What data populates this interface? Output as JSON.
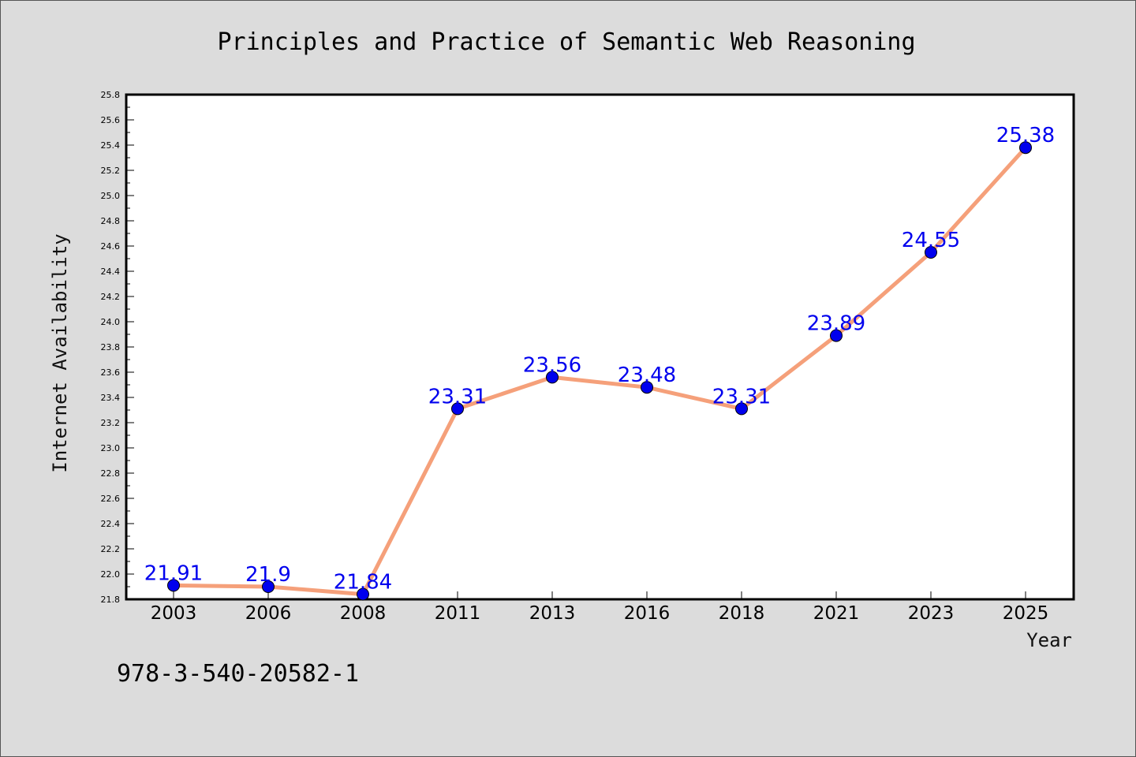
{
  "chart_data": {
    "type": "line",
    "title": "Principles and Practice of Semantic Web Reasoning",
    "xlabel": "Year",
    "ylabel": "Internet Availability",
    "categories": [
      "2003",
      "2006",
      "2008",
      "2011",
      "2013",
      "2016",
      "2018",
      "2021",
      "2023",
      "2025"
    ],
    "series": [
      {
        "values": [
          21.91,
          21.9,
          21.84,
          23.31,
          23.56,
          23.48,
          23.31,
          23.89,
          24.55,
          25.38
        ],
        "data_labels": [
          "21.91",
          "21.9",
          "21.84",
          "23.31",
          "23.56",
          "23.48",
          "23.31",
          "23.89",
          "24.55",
          "25.38"
        ],
        "line_color": "#f5a07a",
        "marker_color": "#0000ee"
      }
    ],
    "ylim": [
      21.8,
      25.8
    ],
    "yticks": [
      "21.8",
      "22.0",
      "22.2",
      "22.4",
      "22.6",
      "22.8",
      "23.0",
      "23.2",
      "23.4",
      "23.6",
      "23.8",
      "24.0",
      "24.2",
      "24.4",
      "24.6",
      "24.8",
      "25.0",
      "25.2",
      "25.4",
      "25.6",
      "25.8"
    ],
    "ytick_values": [
      21.8,
      22.0,
      22.2,
      22.4,
      22.6,
      22.8,
      23.0,
      23.2,
      23.4,
      23.6,
      23.8,
      24.0,
      24.2,
      24.4,
      24.6,
      24.8,
      25.0,
      25.2,
      25.4,
      25.6,
      25.8
    ],
    "grid": false,
    "legend": "none",
    "label_color": "#0000ee"
  },
  "footnote": "978-3-540-20582-1",
  "colors": {
    "background": "#dcdcdc",
    "plot_area": "#ffffff",
    "axis": "#000000"
  }
}
